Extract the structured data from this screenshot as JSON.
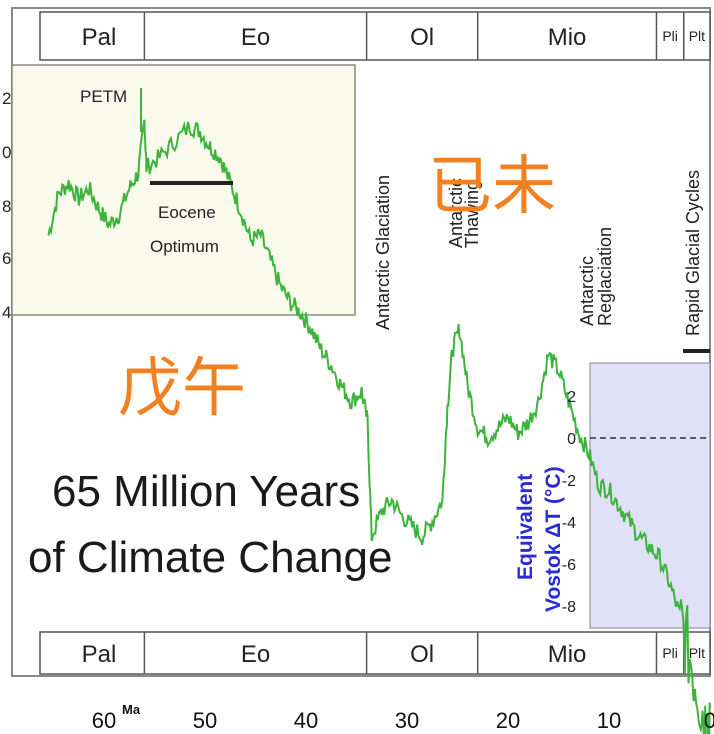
{
  "chart_data": {
    "type": "line",
    "title_lines": [
      "65 Million Years",
      "of Climate Change"
    ],
    "x_unit_label": "Ma",
    "x_ticks": [
      "60",
      "50",
      "40",
      "30",
      "20",
      "10",
      "0"
    ],
    "epochs": [
      {
        "label": "Pal",
        "from": 65,
        "to": 56
      },
      {
        "label": "Eo",
        "from": 56,
        "to": 34
      },
      {
        "label": "Ol",
        "from": 34,
        "to": 23
      },
      {
        "label": "Mio",
        "from": 23,
        "to": 5.3
      },
      {
        "label": "Pli",
        "from": 5.3,
        "to": 2.6
      },
      {
        "label": "Plt",
        "from": 2.6,
        "to": 0
      }
    ],
    "inset_y_ticks": [
      "2",
      "0",
      "8",
      "6",
      "4"
    ],
    "vostok_ticks": [
      "2",
      "0",
      "-2",
      "-4",
      "-6",
      "-8"
    ],
    "vostok_label_lines": [
      "Equivalent",
      "Vostok ΔT (°C)"
    ],
    "annotations": {
      "petm": "PETM",
      "eocene_optimum": [
        "Eocene",
        "Optimum"
      ],
      "antarctic_glaciation": "Antarctic Glaciation",
      "antarctic_thawing": [
        "Antarctic",
        "Thawing"
      ],
      "antarctic_reglaciation": [
        "Antarctic",
        "Reglaciation"
      ],
      "rapid_glacial_cycles": "Rapid Glacial Cycles"
    },
    "overlay_text": {
      "left_glyphs": "戊午",
      "right_glyphs": "已未"
    },
    "series": [
      {
        "color": "#3cb43c",
        "points": [
          [
            65.5,
            3.9
          ],
          [
            64.5,
            4.7
          ],
          [
            63.5,
            4.9
          ],
          [
            62.5,
            4.6
          ],
          [
            61.5,
            4.8
          ],
          [
            60.5,
            4.4
          ],
          [
            59.5,
            4.1
          ],
          [
            58.5,
            4.3
          ],
          [
            57.5,
            4.8
          ],
          [
            56.6,
            5.1
          ],
          [
            56.0,
            6.1
          ],
          [
            55.8,
            5.2
          ],
          [
            54.5,
            5.4
          ],
          [
            53.0,
            5.7
          ],
          [
            51.5,
            6.0
          ],
          [
            50.5,
            5.9
          ],
          [
            49.5,
            5.6
          ],
          [
            48.5,
            5.4
          ],
          [
            47.5,
            4.9
          ],
          [
            46.5,
            4.4
          ],
          [
            45.5,
            3.8
          ],
          [
            44.5,
            3.9
          ],
          [
            43.5,
            3.4
          ],
          [
            42.5,
            2.9
          ],
          [
            41.5,
            2.6
          ],
          [
            40.5,
            2.4
          ],
          [
            39.5,
            2.1
          ],
          [
            38.5,
            1.7
          ],
          [
            37.5,
            1.4
          ],
          [
            36.5,
            1.0
          ],
          [
            35.5,
            0.7
          ],
          [
            34.5,
            0.9
          ],
          [
            33.9,
            0.3
          ],
          [
            33.5,
            -1.9
          ],
          [
            32.5,
            -1.4
          ],
          [
            31.5,
            -1.2
          ],
          [
            30.5,
            -1.5
          ],
          [
            29.5,
            -1.7
          ],
          [
            28.5,
            -1.9
          ],
          [
            27.5,
            -1.6
          ],
          [
            26.5,
            -1.2
          ],
          [
            26.0,
            0.6
          ],
          [
            25.5,
            1.7
          ],
          [
            24.8,
            2.1
          ],
          [
            24.0,
            1.0
          ],
          [
            23.0,
            0.2
          ],
          [
            22.0,
            0.0
          ],
          [
            21.0,
            0.2
          ],
          [
            20.0,
            0.4
          ],
          [
            19.0,
            0.1
          ],
          [
            18.0,
            0.3
          ],
          [
            17.0,
            0.7
          ],
          [
            16.0,
            1.6
          ],
          [
            15.0,
            1.3
          ],
          [
            14.0,
            0.7
          ],
          [
            13.0,
            0.1
          ],
          [
            12.0,
            -0.3
          ],
          [
            11.0,
            -0.9
          ],
          [
            10.0,
            -1.0
          ],
          [
            9.0,
            -1.3
          ],
          [
            8.0,
            -1.6
          ],
          [
            7.0,
            -1.9
          ],
          [
            6.0,
            -2.1
          ],
          [
            5.0,
            -2.3
          ],
          [
            4.0,
            -2.8
          ],
          [
            3.0,
            -3.4
          ],
          [
            2.0,
            -4.2
          ],
          [
            1.0,
            -5.0
          ],
          [
            0.3,
            -5.6
          ],
          [
            0.0,
            -5.2
          ]
        ]
      }
    ]
  }
}
